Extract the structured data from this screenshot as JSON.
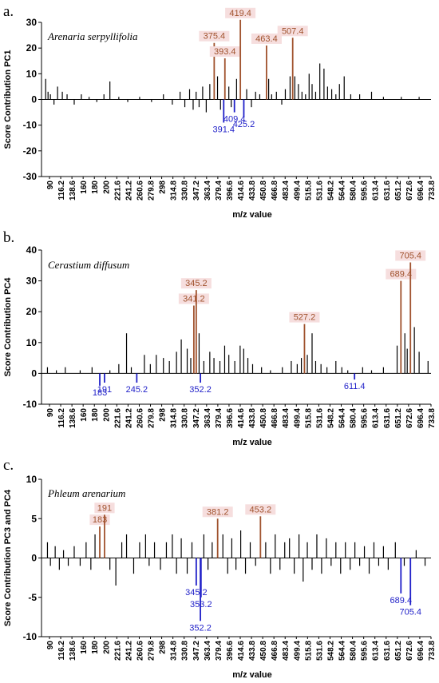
{
  "colors": {
    "positive_peak": "#a0522d",
    "negative_peak": "#1f1fc8",
    "baseline_bars": "#000000",
    "label_bg": "#f6dede"
  },
  "chart_data": [
    {
      "type": "bar",
      "panel_label": "a.",
      "species": "Arenaria serpyllifolia",
      "ylabel": "Score Contribution PC1",
      "xlabel": "m/z value",
      "ylim": [
        -30,
        30
      ],
      "yticks": [
        30,
        20,
        10,
        0,
        -10,
        -20,
        -30
      ],
      "xlim": [
        85,
        740
      ],
      "xticks": [
        "90",
        "116.2",
        "138.6",
        "160",
        "180",
        "200",
        "221.6",
        "241.2",
        "260.6",
        "279.8",
        "298",
        "314.8",
        "330.8",
        "347.2",
        "363.4",
        "379.4",
        "396.6",
        "414.6",
        "433.8",
        "450.8",
        "466.8",
        "483.4",
        "499.4",
        "515.8",
        "531.6",
        "548.2",
        "564.4",
        "580.4",
        "595.6",
        "613.4",
        "631.6",
        "651.2",
        "672.6",
        "696.4",
        "733.8"
      ],
      "positive_peaks": [
        {
          "mz": 375.4,
          "value": 22,
          "label": "375.4"
        },
        {
          "mz": 393.4,
          "value": 16,
          "label": "393.4"
        },
        {
          "mz": 419.4,
          "value": 31,
          "label": "419.4"
        },
        {
          "mz": 463.4,
          "value": 21,
          "label": "463.4"
        },
        {
          "mz": 507.4,
          "value": 24,
          "label": "507.4"
        }
      ],
      "negative_peaks": [
        {
          "mz": 391.4,
          "value": -9,
          "label": "391.4"
        },
        {
          "mz": 409.4,
          "value": -5,
          "label": "409.4"
        },
        {
          "mz": 425.2,
          "value": -7,
          "label": "425.2"
        }
      ],
      "minor_bars": [
        {
          "mz": 92,
          "value": 8
        },
        {
          "mz": 96,
          "value": 3
        },
        {
          "mz": 100,
          "value": 2
        },
        {
          "mz": 106,
          "value": -2
        },
        {
          "mz": 112,
          "value": 5
        },
        {
          "mz": 120,
          "value": 3
        },
        {
          "mz": 128,
          "value": 2
        },
        {
          "mz": 140,
          "value": -2
        },
        {
          "mz": 152,
          "value": 2
        },
        {
          "mz": 165,
          "value": 1
        },
        {
          "mz": 178,
          "value": -1
        },
        {
          "mz": 190,
          "value": 2
        },
        {
          "mz": 200,
          "value": 7
        },
        {
          "mz": 215,
          "value": 1
        },
        {
          "mz": 230,
          "value": -1
        },
        {
          "mz": 250,
          "value": 1
        },
        {
          "mz": 270,
          "value": -1
        },
        {
          "mz": 290,
          "value": 2
        },
        {
          "mz": 305,
          "value": -2
        },
        {
          "mz": 318,
          "value": 3
        },
        {
          "mz": 326,
          "value": -3
        },
        {
          "mz": 334,
          "value": 4
        },
        {
          "mz": 340,
          "value": -4
        },
        {
          "mz": 345,
          "value": 3
        },
        {
          "mz": 350,
          "value": -3
        },
        {
          "mz": 356,
          "value": 5
        },
        {
          "mz": 362,
          "value": -5
        },
        {
          "mz": 368,
          "value": 6
        },
        {
          "mz": 381,
          "value": 9
        },
        {
          "mz": 386,
          "value": -4
        },
        {
          "mz": 400,
          "value": 5
        },
        {
          "mz": 404,
          "value": -3
        },
        {
          "mz": 413,
          "value": 8
        },
        {
          "mz": 430,
          "value": 4
        },
        {
          "mz": 438,
          "value": -3
        },
        {
          "mz": 445,
          "value": 3
        },
        {
          "mz": 452,
          "value": 2
        },
        {
          "mz": 467,
          "value": 8
        },
        {
          "mz": 472,
          "value": 2
        },
        {
          "mz": 480,
          "value": 3
        },
        {
          "mz": 489,
          "value": -2
        },
        {
          "mz": 495,
          "value": 4
        },
        {
          "mz": 503,
          "value": 9
        },
        {
          "mz": 511,
          "value": 9
        },
        {
          "mz": 517,
          "value": 6
        },
        {
          "mz": 523,
          "value": 3
        },
        {
          "mz": 529,
          "value": 2
        },
        {
          "mz": 535,
          "value": 10
        },
        {
          "mz": 540,
          "value": 6
        },
        {
          "mz": 546,
          "value": 3
        },
        {
          "mz": 553,
          "value": 14
        },
        {
          "mz": 560,
          "value": 12
        },
        {
          "mz": 566,
          "value": 5
        },
        {
          "mz": 573,
          "value": 4
        },
        {
          "mz": 580,
          "value": 2
        },
        {
          "mz": 586,
          "value": 6
        },
        {
          "mz": 594,
          "value": 9
        },
        {
          "mz": 605,
          "value": 2
        },
        {
          "mz": 620,
          "value": 2
        },
        {
          "mz": 640,
          "value": 3
        },
        {
          "mz": 660,
          "value": 1
        },
        {
          "mz": 690,
          "value": 1
        },
        {
          "mz": 720,
          "value": 1
        }
      ]
    },
    {
      "type": "bar",
      "panel_label": "b.",
      "species": "Cerastium diffusum",
      "ylabel": "Score Contribution PC4",
      "xlabel": "m/z value",
      "ylim": [
        -10,
        40
      ],
      "yticks": [
        40,
        30,
        20,
        10,
        0,
        -10
      ],
      "xlim": [
        85,
        740
      ],
      "xticks": [
        "90",
        "116.2",
        "138.6",
        "160",
        "180",
        "200",
        "221.6",
        "241.2",
        "260.6",
        "279.8",
        "298",
        "314.8",
        "330.8",
        "347.2",
        "363.4",
        "379.4",
        "396.6",
        "414.6",
        "433.8",
        "450.8",
        "466.8",
        "483.4",
        "499.4",
        "515.8",
        "531.6",
        "548.2",
        "564.4",
        "580.4",
        "595.6",
        "613.4",
        "631.6",
        "651.2",
        "672.6",
        "696.4",
        "733.8"
      ],
      "positive_peaks": [
        {
          "mz": 341.2,
          "value": 22,
          "label": "341.2"
        },
        {
          "mz": 345.2,
          "value": 27,
          "label": "345.2"
        },
        {
          "mz": 527.2,
          "value": 16,
          "label": "527.2"
        },
        {
          "mz": 689.4,
          "value": 30,
          "label": "689.4"
        },
        {
          "mz": 705.4,
          "value": 36,
          "label": "705.4"
        }
      ],
      "negative_peaks": [
        {
          "mz": 183,
          "value": -4,
          "label": "183"
        },
        {
          "mz": 191,
          "value": -3,
          "label": "191"
        },
        {
          "mz": 245.2,
          "value": -3,
          "label": "245.2"
        },
        {
          "mz": 352.2,
          "value": -3,
          "label": "352.2"
        },
        {
          "mz": 611.4,
          "value": -2,
          "label": "611.4"
        }
      ],
      "minor_bars": [
        {
          "mz": 95,
          "value": 2
        },
        {
          "mz": 110,
          "value": 1
        },
        {
          "mz": 125,
          "value": 2
        },
        {
          "mz": 150,
          "value": 1
        },
        {
          "mz": 170,
          "value": 2
        },
        {
          "mz": 200,
          "value": 1
        },
        {
          "mz": 215,
          "value": 3
        },
        {
          "mz": 228,
          "value": 13
        },
        {
          "mz": 236,
          "value": 2
        },
        {
          "mz": 258,
          "value": 6
        },
        {
          "mz": 268,
          "value": 3
        },
        {
          "mz": 278,
          "value": 6
        },
        {
          "mz": 290,
          "value": 5
        },
        {
          "mz": 300,
          "value": 4
        },
        {
          "mz": 312,
          "value": 7
        },
        {
          "mz": 320,
          "value": 11
        },
        {
          "mz": 330,
          "value": 8
        },
        {
          "mz": 336,
          "value": 5
        },
        {
          "mz": 350,
          "value": 13
        },
        {
          "mz": 358,
          "value": 4
        },
        {
          "mz": 368,
          "value": 7
        },
        {
          "mz": 375,
          "value": 5
        },
        {
          "mz": 385,
          "value": 4
        },
        {
          "mz": 393,
          "value": 9
        },
        {
          "mz": 400,
          "value": 6
        },
        {
          "mz": 410,
          "value": 4
        },
        {
          "mz": 419,
          "value": 9
        },
        {
          "mz": 425,
          "value": 8
        },
        {
          "mz": 432,
          "value": 5
        },
        {
          "mz": 440,
          "value": 3
        },
        {
          "mz": 455,
          "value": 2
        },
        {
          "mz": 470,
          "value": 1
        },
        {
          "mz": 490,
          "value": 2
        },
        {
          "mz": 505,
          "value": 4
        },
        {
          "mz": 515,
          "value": 3
        },
        {
          "mz": 522,
          "value": 5
        },
        {
          "mz": 532,
          "value": 6
        },
        {
          "mz": 540,
          "value": 13
        },
        {
          "mz": 546,
          "value": 4
        },
        {
          "mz": 555,
          "value": 3
        },
        {
          "mz": 565,
          "value": 2
        },
        {
          "mz": 580,
          "value": 4
        },
        {
          "mz": 590,
          "value": 2
        },
        {
          "mz": 600,
          "value": 1
        },
        {
          "mz": 625,
          "value": 2
        },
        {
          "mz": 640,
          "value": 1
        },
        {
          "mz": 660,
          "value": 2
        },
        {
          "mz": 683,
          "value": 9
        },
        {
          "mz": 696,
          "value": 13
        },
        {
          "mz": 700,
          "value": 8
        },
        {
          "mz": 712,
          "value": 15
        },
        {
          "mz": 720,
          "value": 7
        },
        {
          "mz": 735,
          "value": 4
        }
      ]
    },
    {
      "type": "bar",
      "panel_label": "c.",
      "species": "Phleum arenarium",
      "ylabel": "Score Contribution PC3 and PC4",
      "xlabel": "m/z value",
      "ylim": [
        -10,
        10
      ],
      "yticks": [
        10,
        5,
        0,
        -5,
        -10
      ],
      "xlim": [
        85,
        740
      ],
      "xticks": [
        "90",
        "116.2",
        "138.6",
        "160",
        "180",
        "200",
        "221.6",
        "241.2",
        "260.6",
        "279.8",
        "298",
        "314.8",
        "330.8",
        "347.2",
        "363.4",
        "379.4",
        "396.6",
        "414.6",
        "433.8",
        "450.8",
        "466.8",
        "483.4",
        "499.4",
        "515.8",
        "531.6",
        "548.2",
        "564.4",
        "580.4",
        "595.6",
        "613.4",
        "631.6",
        "651.2",
        "672.6",
        "696.4",
        "733.8"
      ],
      "positive_peaks": [
        {
          "mz": 183,
          "value": 4,
          "label": "183"
        },
        {
          "mz": 191,
          "value": 5.5,
          "label": "191"
        },
        {
          "mz": 381.2,
          "value": 5,
          "label": "381.2"
        },
        {
          "mz": 453.2,
          "value": 5.3,
          "label": "453.2"
        }
      ],
      "negative_peaks": [
        {
          "mz": 345.2,
          "value": -3.5,
          "label": "345.2"
        },
        {
          "mz": 352.2,
          "value": -8,
          "label": "352.2"
        },
        {
          "mz": 353.2,
          "value": -5,
          "label": "353.2"
        },
        {
          "mz": 689.4,
          "value": -4.5,
          "label": "689.4"
        },
        {
          "mz": 705.4,
          "value": -6,
          "label": "705.4"
        }
      ],
      "minor_bars": [
        {
          "mz": 95,
          "value": 2
        },
        {
          "mz": 100,
          "value": -1
        },
        {
          "mz": 108,
          "value": 1.5
        },
        {
          "mz": 115,
          "value": -1.5
        },
        {
          "mz": 122,
          "value": 1
        },
        {
          "mz": 130,
          "value": -1
        },
        {
          "mz": 140,
          "value": 1.5
        },
        {
          "mz": 150,
          "value": -1
        },
        {
          "mz": 160,
          "value": 2
        },
        {
          "mz": 168,
          "value": -1.5
        },
        {
          "mz": 175,
          "value": 3
        },
        {
          "mz": 200,
          "value": -1.5
        },
        {
          "mz": 210,
          "value": -3.5
        },
        {
          "mz": 220,
          "value": 2
        },
        {
          "mz": 228,
          "value": 3
        },
        {
          "mz": 240,
          "value": -2
        },
        {
          "mz": 250,
          "value": 2
        },
        {
          "mz": 260,
          "value": 3
        },
        {
          "mz": 266,
          "value": -1
        },
        {
          "mz": 275,
          "value": 2
        },
        {
          "mz": 285,
          "value": -1.5
        },
        {
          "mz": 295,
          "value": 2
        },
        {
          "mz": 305,
          "value": 3
        },
        {
          "mz": 312,
          "value": -2
        },
        {
          "mz": 320,
          "value": 2.5
        },
        {
          "mz": 330,
          "value": -2
        },
        {
          "mz": 338,
          "value": 2
        },
        {
          "mz": 358,
          "value": 3
        },
        {
          "mz": 365,
          "value": -1.5
        },
        {
          "mz": 372,
          "value": 2
        },
        {
          "mz": 390,
          "value": 3
        },
        {
          "mz": 398,
          "value": -2
        },
        {
          "mz": 405,
          "value": 2.5
        },
        {
          "mz": 412,
          "value": -1.5
        },
        {
          "mz": 420,
          "value": 3.5
        },
        {
          "mz": 428,
          "value": -2
        },
        {
          "mz": 436,
          "value": 2
        },
        {
          "mz": 445,
          "value": -1
        },
        {
          "mz": 462,
          "value": 2
        },
        {
          "mz": 470,
          "value": -2
        },
        {
          "mz": 478,
          "value": 3
        },
        {
          "mz": 486,
          "value": -1.5
        },
        {
          "mz": 494,
          "value": 2
        },
        {
          "mz": 502,
          "value": 2.5
        },
        {
          "mz": 510,
          "value": -2
        },
        {
          "mz": 518,
          "value": 3
        },
        {
          "mz": 525,
          "value": -3
        },
        {
          "mz": 532,
          "value": 2
        },
        {
          "mz": 540,
          "value": -1.5
        },
        {
          "mz": 548,
          "value": 3
        },
        {
          "mz": 556,
          "value": -2
        },
        {
          "mz": 564,
          "value": 2.5
        },
        {
          "mz": 572,
          "value": -1
        },
        {
          "mz": 580,
          "value": 2
        },
        {
          "mz": 588,
          "value": -2
        },
        {
          "mz": 596,
          "value": 2
        },
        {
          "mz": 604,
          "value": -1.5
        },
        {
          "mz": 612,
          "value": 2
        },
        {
          "mz": 620,
          "value": -1
        },
        {
          "mz": 628,
          "value": 1.5
        },
        {
          "mz": 636,
          "value": -2
        },
        {
          "mz": 644,
          "value": 2
        },
        {
          "mz": 652,
          "value": -1
        },
        {
          "mz": 660,
          "value": 1.5
        },
        {
          "mz": 668,
          "value": -1.5
        },
        {
          "mz": 680,
          "value": 2
        },
        {
          "mz": 695,
          "value": -1
        },
        {
          "mz": 715,
          "value": 1
        },
        {
          "mz": 730,
          "value": -1
        }
      ]
    }
  ]
}
